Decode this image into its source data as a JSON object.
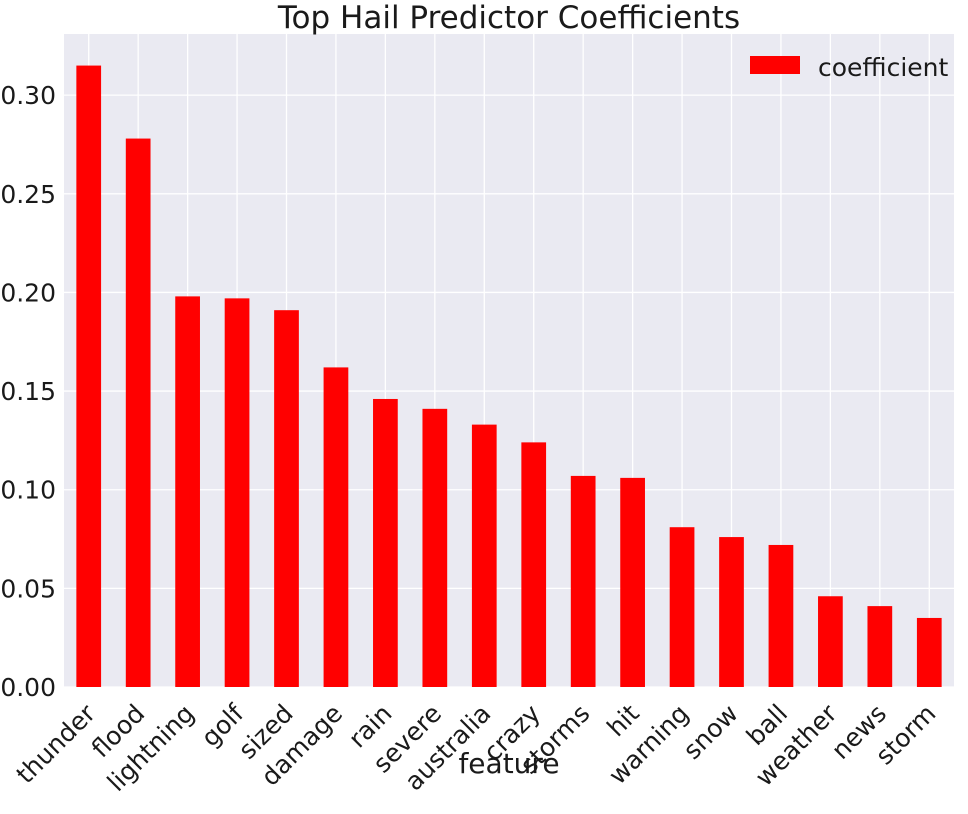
{
  "chart_data": {
    "type": "bar",
    "title": "Top Hail Predictor Coefficients",
    "xlabel": "feature",
    "ylabel": "",
    "categories": [
      "thunder",
      "flood",
      "lightning",
      "golf",
      "sized",
      "damage",
      "rain",
      "severe",
      "australia",
      "crazy",
      "storms",
      "hit",
      "warning",
      "snow",
      "ball",
      "weather",
      "news",
      "storm"
    ],
    "series": [
      {
        "name": "coefficient",
        "color": "#ff0000",
        "values": [
          0.315,
          0.278,
          0.198,
          0.197,
          0.191,
          0.162,
          0.146,
          0.141,
          0.133,
          0.124,
          0.107,
          0.106,
          0.081,
          0.076,
          0.072,
          0.046,
          0.041,
          0.035
        ]
      }
    ],
    "ylim": [
      0,
      0.331
    ],
    "yticks": [
      "0.00",
      "0.05",
      "0.10",
      "0.15",
      "0.20",
      "0.25",
      "0.30"
    ],
    "grid": true,
    "legend": "top-right",
    "colors": {
      "background": "#eaeaf2",
      "grid": "#ffffff",
      "bar": "#ff0000"
    }
  }
}
